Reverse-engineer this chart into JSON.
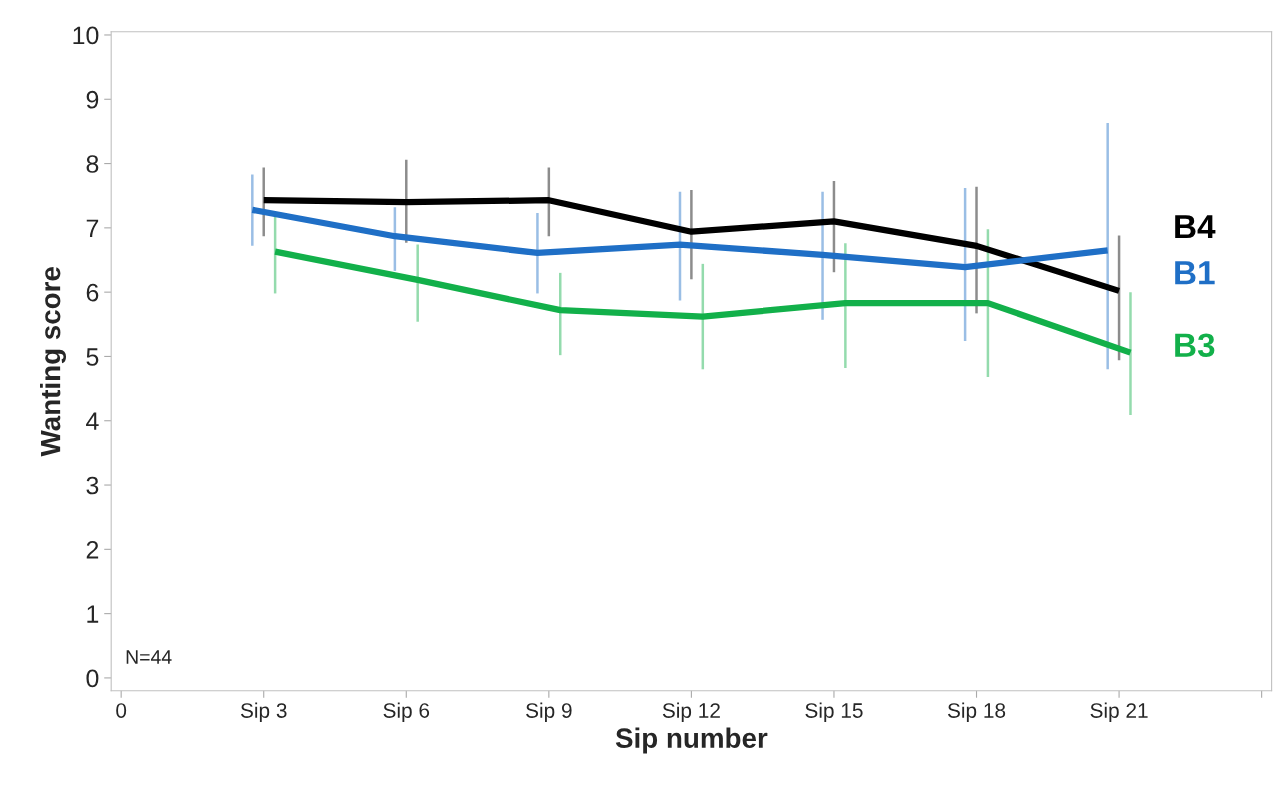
{
  "chart_data": {
    "type": "line",
    "xlabel": "Sip number",
    "ylabel": "Wanting score",
    "categories": [
      "0",
      "Sip 3",
      "Sip 6",
      "Sip 9",
      "Sip 12",
      "Sip 15",
      "Sip 18",
      "Sip 21",
      null
    ],
    "ylim": [
      -0.2,
      10.05
    ],
    "yticks": [
      0,
      1,
      2,
      3,
      4,
      5,
      6,
      7,
      8,
      9,
      10
    ],
    "grid": false,
    "legend": false,
    "marker": "none",
    "line_style": "solid",
    "annotations": [
      "N=44"
    ],
    "series": [
      {
        "name": "B4",
        "color": "#000000",
        "values": [
          null,
          7.43,
          7.4,
          7.43,
          6.94,
          7.1,
          6.72,
          6.02,
          null
        ],
        "errors": [
          null,
          [
            6.87,
            7.94
          ],
          [
            6.77,
            8.06
          ],
          [
            6.87,
            7.94
          ],
          [
            6.2,
            7.59
          ],
          [
            6.31,
            7.73
          ],
          [
            5.67,
            7.64
          ],
          [
            4.94,
            6.88
          ],
          null
        ]
      },
      {
        "name": "B1",
        "color": "#1f6fc6",
        "values": [
          null,
          7.28,
          6.87,
          6.61,
          6.74,
          6.58,
          6.39,
          6.65,
          null
        ],
        "errors": [
          null,
          [
            6.72,
            7.83
          ],
          [
            6.33,
            7.32
          ],
          [
            5.98,
            7.23
          ],
          [
            5.87,
            7.56
          ],
          [
            5.57,
            7.56
          ],
          [
            5.24,
            7.62
          ],
          [
            4.8,
            8.63
          ],
          null
        ]
      },
      {
        "name": "B3",
        "color": "#12b04a",
        "values": [
          null,
          6.63,
          6.19,
          5.72,
          5.62,
          5.83,
          5.83,
          5.06,
          null
        ],
        "errors": [
          null,
          [
            5.98,
            7.17
          ],
          [
            5.54,
            6.74
          ],
          [
            5.02,
            6.3
          ],
          [
            4.8,
            6.44
          ],
          [
            4.82,
            6.76
          ],
          [
            4.68,
            6.98
          ],
          [
            4.09,
            6.0
          ],
          null
        ]
      }
    ]
  }
}
